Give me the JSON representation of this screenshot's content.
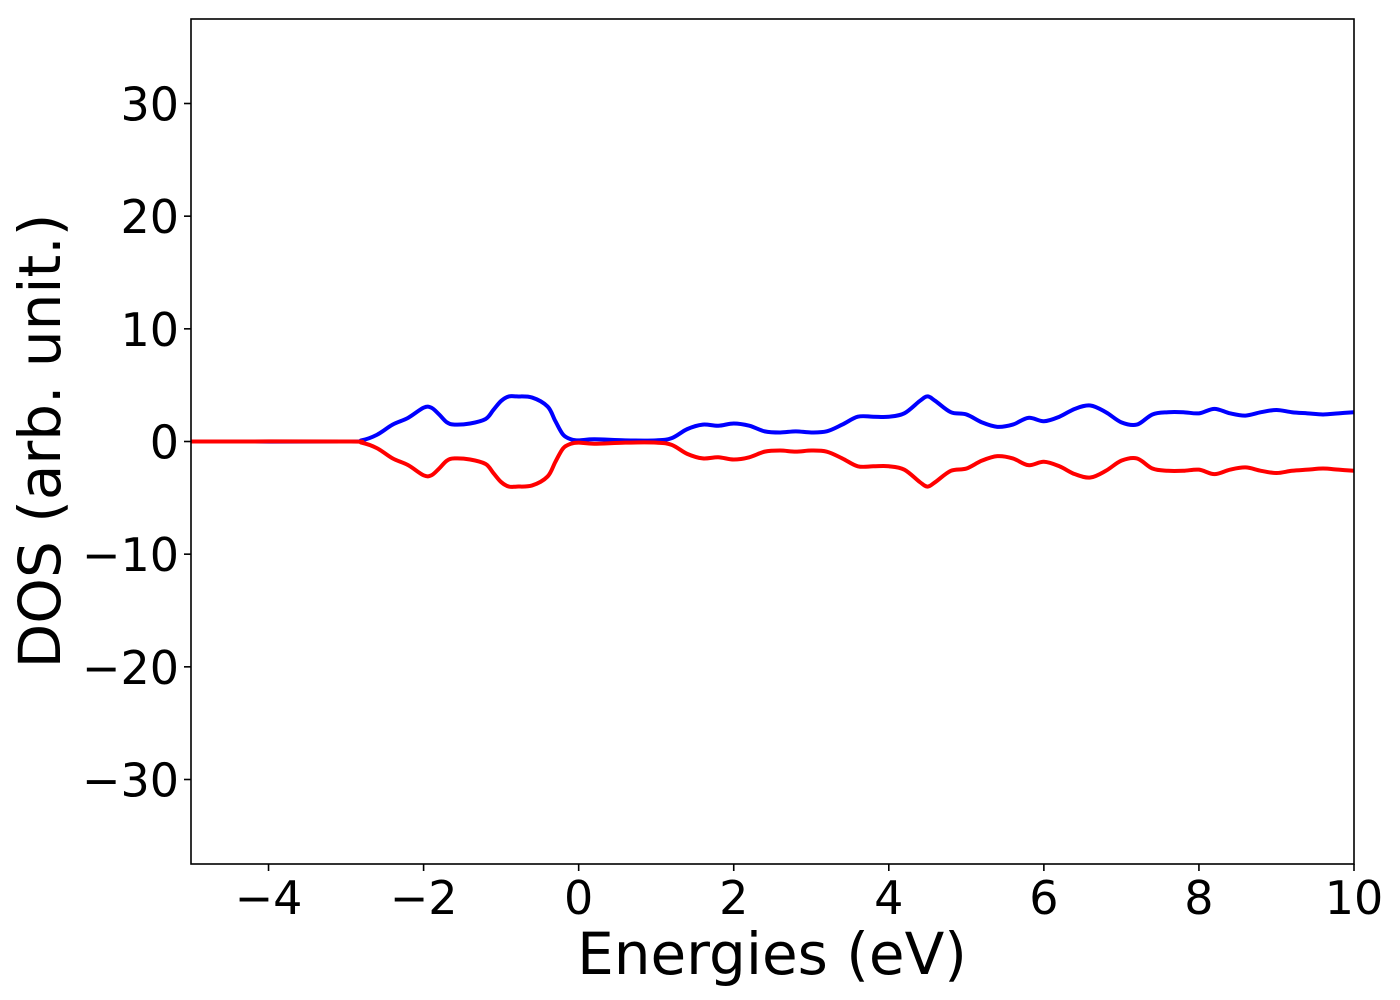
{
  "chart_data": {
    "type": "line",
    "title": "",
    "xlabel": "Energies (eV)",
    "ylabel": "DOS (arb. unit.)",
    "xlim": [
      -5,
      10
    ],
    "ylim": [
      -37.5,
      37.5
    ],
    "grid": false,
    "legend": "none",
    "x_ticks": [
      -4,
      -2,
      0,
      2,
      4,
      6,
      8,
      10
    ],
    "x_tick_labels": [
      "−4",
      "−2",
      "0",
      "2",
      "4",
      "6",
      "8",
      "10"
    ],
    "y_ticks": [
      -30,
      -20,
      -10,
      0,
      10,
      20,
      30
    ],
    "y_tick_labels": [
      "−30",
      "−20",
      "−10",
      "0",
      "10",
      "20",
      "30"
    ],
    "series": [
      {
        "color": "#0000ff",
        "x": [
          -5.0,
          -3.0,
          -2.8,
          -2.6,
          -2.4,
          -2.2,
          -2.0,
          -1.9,
          -1.8,
          -1.7,
          -1.6,
          -1.4,
          -1.2,
          -1.1,
          -1.0,
          -0.9,
          -0.8,
          -0.6,
          -0.4,
          -0.3,
          -0.2,
          -0.1,
          0.0,
          0.2,
          0.6,
          1.0,
          1.2,
          1.4,
          1.6,
          1.8,
          2.0,
          2.2,
          2.4,
          2.6,
          2.8,
          3.0,
          3.2,
          3.4,
          3.6,
          3.8,
          4.0,
          4.2,
          4.4,
          4.5,
          4.6,
          4.8,
          5.0,
          5.2,
          5.4,
          5.6,
          5.8,
          6.0,
          6.2,
          6.4,
          6.6,
          6.8,
          7.0,
          7.2,
          7.4,
          7.6,
          7.8,
          8.0,
          8.2,
          8.4,
          8.6,
          8.8,
          9.0,
          9.2,
          9.4,
          9.6,
          9.8,
          10.0
        ],
        "y": [
          0.0,
          0.0,
          0.1,
          0.6,
          1.5,
          2.1,
          3.0,
          3.0,
          2.4,
          1.7,
          1.5,
          1.6,
          2.0,
          2.8,
          3.6,
          4.0,
          4.0,
          3.9,
          3.1,
          1.8,
          0.6,
          0.2,
          0.1,
          0.2,
          0.1,
          0.1,
          0.3,
          1.1,
          1.5,
          1.4,
          1.6,
          1.4,
          0.9,
          0.8,
          0.9,
          0.8,
          0.9,
          1.5,
          2.2,
          2.2,
          2.2,
          2.5,
          3.6,
          4.0,
          3.6,
          2.6,
          2.4,
          1.7,
          1.3,
          1.5,
          2.1,
          1.8,
          2.2,
          2.9,
          3.2,
          2.6,
          1.7,
          1.5,
          2.4,
          2.6,
          2.6,
          2.5,
          2.9,
          2.5,
          2.3,
          2.6,
          2.8,
          2.6,
          2.5,
          2.4,
          2.5,
          2.6
        ]
      },
      {
        "color": "#ff0000",
        "x": [
          -5.0,
          -3.0,
          -2.8,
          -2.6,
          -2.4,
          -2.2,
          -2.0,
          -1.9,
          -1.8,
          -1.7,
          -1.6,
          -1.4,
          -1.2,
          -1.1,
          -1.0,
          -0.9,
          -0.8,
          -0.6,
          -0.4,
          -0.3,
          -0.2,
          -0.1,
          0.0,
          0.2,
          0.6,
          1.0,
          1.2,
          1.4,
          1.6,
          1.8,
          2.0,
          2.2,
          2.4,
          2.6,
          2.8,
          3.0,
          3.2,
          3.4,
          3.6,
          3.8,
          4.0,
          4.2,
          4.4,
          4.5,
          4.6,
          4.8,
          5.0,
          5.2,
          5.4,
          5.6,
          5.8,
          6.0,
          6.2,
          6.4,
          6.6,
          6.8,
          7.0,
          7.2,
          7.4,
          7.6,
          7.8,
          8.0,
          8.2,
          8.4,
          8.6,
          8.8,
          9.0,
          9.2,
          9.4,
          9.6,
          9.8,
          10.0
        ],
        "y": [
          0.0,
          0.0,
          -0.1,
          -0.6,
          -1.5,
          -2.1,
          -3.0,
          -3.0,
          -2.4,
          -1.7,
          -1.5,
          -1.6,
          -2.0,
          -2.8,
          -3.6,
          -4.0,
          -4.0,
          -3.9,
          -3.1,
          -1.8,
          -0.6,
          -0.2,
          -0.1,
          -0.2,
          -0.1,
          -0.1,
          -0.3,
          -1.1,
          -1.5,
          -1.4,
          -1.6,
          -1.4,
          -0.9,
          -0.8,
          -0.9,
          -0.8,
          -0.9,
          -1.5,
          -2.2,
          -2.2,
          -2.2,
          -2.5,
          -3.6,
          -4.0,
          -3.6,
          -2.6,
          -2.4,
          -1.7,
          -1.3,
          -1.5,
          -2.1,
          -1.8,
          -2.2,
          -2.9,
          -3.2,
          -2.6,
          -1.7,
          -1.5,
          -2.4,
          -2.6,
          -2.6,
          -2.5,
          -2.9,
          -2.5,
          -2.3,
          -2.6,
          -2.8,
          -2.6,
          -2.5,
          -2.4,
          -2.5,
          -2.6
        ]
      }
    ]
  }
}
